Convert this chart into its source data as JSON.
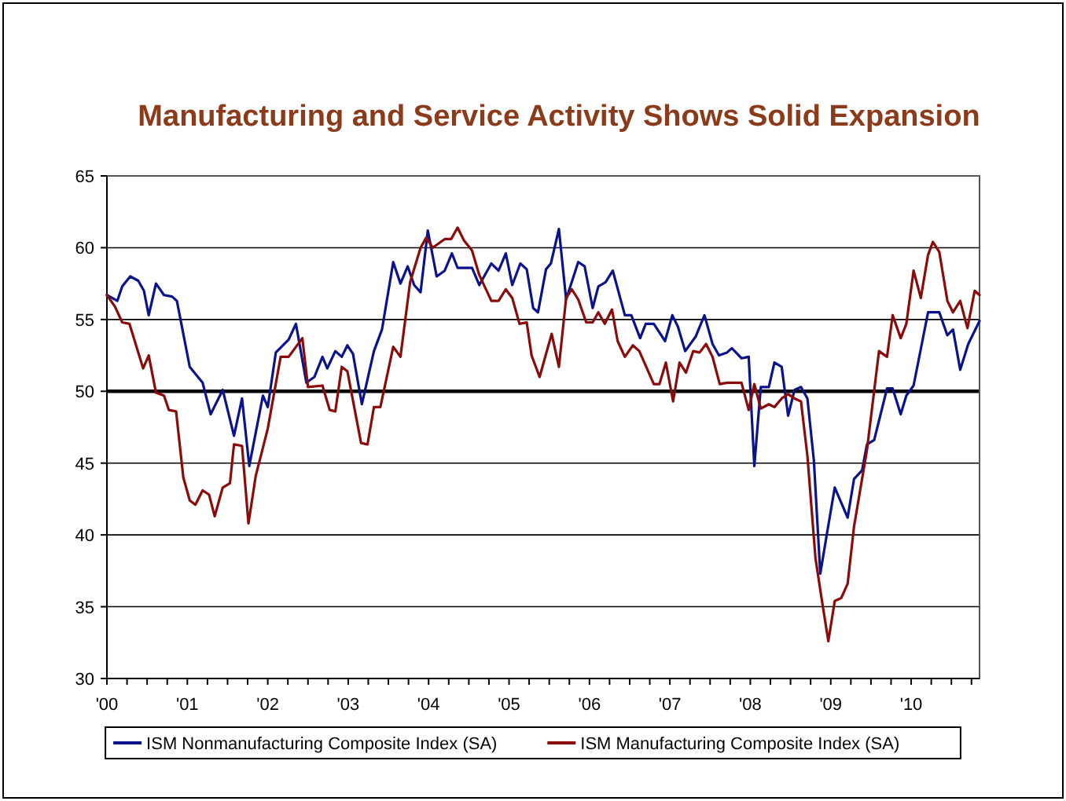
{
  "chart_data": {
    "type": "line",
    "title": "Manufacturing and Service Activity Shows Solid Expansion",
    "xlim": [
      2000,
      2010.85
    ],
    "ylim": [
      30,
      65
    ],
    "yticks": [
      30,
      35,
      40,
      45,
      50,
      55,
      60,
      65
    ],
    "xticks": [
      {
        "value": 2000,
        "label": "'00"
      },
      {
        "value": 2000.25,
        "label": null
      },
      {
        "value": 2000.5,
        "label": null
      },
      {
        "value": 2000.75,
        "label": null
      },
      {
        "value": 2001,
        "label": "'01"
      },
      {
        "value": 2001.25,
        "label": null
      },
      {
        "value": 2001.5,
        "label": null
      },
      {
        "value": 2001.75,
        "label": null
      },
      {
        "value": 2002,
        "label": "'02"
      },
      {
        "value": 2002.25,
        "label": null
      },
      {
        "value": 2002.5,
        "label": null
      },
      {
        "value": 2002.75,
        "label": null
      },
      {
        "value": 2003,
        "label": "'03"
      },
      {
        "value": 2003.25,
        "label": null
      },
      {
        "value": 2003.5,
        "label": null
      },
      {
        "value": 2003.75,
        "label": null
      },
      {
        "value": 2004,
        "label": "'04"
      },
      {
        "value": 2004.25,
        "label": null
      },
      {
        "value": 2004.5,
        "label": null
      },
      {
        "value": 2004.75,
        "label": null
      },
      {
        "value": 2005,
        "label": "'05"
      },
      {
        "value": 2005.25,
        "label": null
      },
      {
        "value": 2005.5,
        "label": null
      },
      {
        "value": 2005.75,
        "label": null
      },
      {
        "value": 2006,
        "label": "'06"
      },
      {
        "value": 2006.25,
        "label": null
      },
      {
        "value": 2006.5,
        "label": null
      },
      {
        "value": 2006.75,
        "label": null
      },
      {
        "value": 2007,
        "label": "'07"
      },
      {
        "value": 2007.25,
        "label": null
      },
      {
        "value": 2007.5,
        "label": null
      },
      {
        "value": 2007.75,
        "label": null
      },
      {
        "value": 2008,
        "label": "'08"
      },
      {
        "value": 2008.25,
        "label": null
      },
      {
        "value": 2008.5,
        "label": null
      },
      {
        "value": 2008.75,
        "label": null
      },
      {
        "value": 2009,
        "label": "'09"
      },
      {
        "value": 2009.25,
        "label": null
      },
      {
        "value": 2009.5,
        "label": null
      },
      {
        "value": 2009.75,
        "label": null
      },
      {
        "value": 2010,
        "label": "'10"
      },
      {
        "value": 2010.25,
        "label": null
      },
      {
        "value": 2010.5,
        "label": null
      },
      {
        "value": 2010.75,
        "label": null
      }
    ],
    "grid": "y",
    "legend": "bottom",
    "marker": "none",
    "line_style": "solid",
    "ref_lines": [
      {
        "axis": "y",
        "value": 50,
        "color": "#000000"
      }
    ],
    "series": [
      {
        "name": "ISM Nonmanufacturing Composite Index (SA)",
        "color": "#0a128c",
        "x": [
          2000.0,
          2000.13,
          2000.19,
          2000.29,
          2000.39,
          2000.46,
          2000.52,
          2000.61,
          2000.71,
          2000.81,
          2000.87,
          2001.03,
          2001.19,
          2001.29,
          2001.44,
          2001.58,
          2001.68,
          2001.77,
          2001.94,
          2002.0,
          2002.1,
          2002.26,
          2002.35,
          2002.48,
          2002.58,
          2002.68,
          2002.74,
          2002.84,
          2002.92,
          2002.99,
          2003.06,
          2003.17,
          2003.32,
          2003.42,
          2003.56,
          2003.65,
          2003.74,
          2003.82,
          2003.9,
          2003.99,
          2004.1,
          2004.2,
          2004.29,
          2004.36,
          2004.54,
          2004.63,
          2004.78,
          2004.87,
          2004.96,
          2005.04,
          2005.14,
          2005.22,
          2005.3,
          2005.36,
          2005.46,
          2005.52,
          2005.62,
          2005.71,
          2005.86,
          2005.94,
          2006.04,
          2006.11,
          2006.2,
          2006.29,
          2006.44,
          2006.52,
          2006.63,
          2006.7,
          2006.8,
          2006.94,
          2007.03,
          2007.1,
          2007.19,
          2007.32,
          2007.43,
          2007.53,
          2007.61,
          2007.71,
          2007.77,
          2007.89,
          2007.98,
          2008.05,
          2008.13,
          2008.23,
          2008.3,
          2008.39,
          2008.47,
          2008.55,
          2008.63,
          2008.71,
          2008.79,
          2008.87,
          2008.95,
          2009.05,
          2009.21,
          2009.29,
          2009.39,
          2009.45,
          2009.54,
          2009.7,
          2009.77,
          2009.87,
          2009.94,
          2010.03,
          2010.21,
          2010.35,
          2010.45,
          2010.52,
          2010.61,
          2010.71,
          2010.85
        ],
        "values": [
          56.7,
          56.3,
          57.3,
          58.0,
          57.7,
          57.0,
          55.3,
          57.5,
          56.7,
          56.6,
          56.3,
          51.7,
          50.6,
          48.4,
          50.1,
          46.9,
          49.5,
          44.8,
          49.7,
          48.9,
          52.7,
          53.6,
          54.7,
          50.6,
          51.0,
          52.4,
          51.6,
          52.8,
          52.4,
          53.2,
          52.6,
          49.1,
          52.8,
          54.3,
          59.0,
          57.5,
          58.7,
          57.4,
          56.9,
          61.2,
          58.0,
          58.4,
          59.6,
          58.6,
          58.6,
          57.4,
          58.9,
          58.4,
          59.6,
          57.4,
          58.9,
          58.5,
          55.8,
          55.5,
          58.5,
          58.9,
          61.3,
          56.4,
          59.0,
          58.7,
          55.8,
          57.3,
          57.6,
          58.4,
          55.3,
          55.3,
          53.7,
          54.7,
          54.7,
          53.5,
          55.3,
          54.5,
          52.8,
          53.8,
          55.3,
          53.3,
          52.5,
          52.7,
          53.0,
          52.3,
          52.4,
          44.8,
          50.3,
          50.3,
          52.0,
          51.7,
          48.3,
          50.1,
          50.3,
          49.5,
          45.2,
          37.3,
          40.0,
          43.3,
          41.2,
          43.9,
          44.5,
          46.3,
          46.6,
          50.2,
          50.2,
          48.4,
          49.7,
          50.4,
          55.5,
          55.5,
          53.9,
          54.3,
          51.5,
          53.3,
          54.9
        ]
      },
      {
        "name": "ISM Manufacturing Composite Index (SA)",
        "color": "#8b0a0a",
        "x": [
          2000.0,
          2000.1,
          2000.19,
          2000.28,
          2000.45,
          2000.52,
          2000.61,
          2000.71,
          2000.77,
          2000.86,
          2000.95,
          2001.03,
          2001.1,
          2001.19,
          2001.27,
          2001.34,
          2001.44,
          2001.53,
          2001.58,
          2001.68,
          2001.76,
          2001.85,
          2002.0,
          2002.16,
          2002.26,
          2002.43,
          2002.5,
          2002.68,
          2002.77,
          2002.84,
          2002.92,
          2002.99,
          2003.16,
          2003.24,
          2003.32,
          2003.4,
          2003.56,
          2003.65,
          2003.77,
          2003.9,
          2003.97,
          2004.05,
          2004.2,
          2004.28,
          2004.36,
          2004.44,
          2004.54,
          2004.63,
          2004.78,
          2004.87,
          2004.96,
          2005.04,
          2005.13,
          2005.22,
          2005.28,
          2005.38,
          2005.53,
          2005.62,
          2005.71,
          2005.78,
          2005.86,
          2005.96,
          2006.04,
          2006.11,
          2006.19,
          2006.28,
          2006.35,
          2006.44,
          2006.54,
          2006.62,
          2006.8,
          2006.87,
          2006.95,
          2007.04,
          2007.12,
          2007.2,
          2007.29,
          2007.37,
          2007.45,
          2007.53,
          2007.62,
          2007.71,
          2007.89,
          2007.98,
          2008.05,
          2008.13,
          2008.23,
          2008.3,
          2008.39,
          2008.47,
          2008.55,
          2008.63,
          2008.71,
          2008.81,
          2008.88,
          2008.97,
          2009.05,
          2009.13,
          2009.21,
          2009.29,
          2009.45,
          2009.6,
          2009.7,
          2009.77,
          2009.87,
          2009.94,
          2010.03,
          2010.12,
          2010.21,
          2010.27,
          2010.35,
          2010.45,
          2010.52,
          2010.61,
          2010.7,
          2010.79,
          2010.85
        ],
        "values": [
          56.7,
          55.9,
          54.8,
          54.7,
          51.6,
          52.5,
          49.9,
          49.7,
          48.7,
          48.6,
          44.0,
          42.4,
          42.1,
          43.1,
          42.8,
          41.3,
          43.3,
          43.6,
          46.3,
          46.2,
          40.8,
          44.1,
          47.4,
          52.4,
          52.4,
          53.7,
          50.3,
          50.4,
          48.7,
          48.6,
          51.7,
          51.4,
          46.4,
          46.3,
          48.9,
          48.9,
          53.1,
          52.4,
          57.6,
          60.0,
          60.7,
          60.0,
          60.6,
          60.6,
          61.4,
          60.5,
          59.8,
          58.1,
          56.3,
          56.3,
          57.1,
          56.5,
          54.7,
          54.8,
          52.5,
          51.0,
          54.0,
          51.7,
          56.5,
          57.1,
          56.4,
          54.8,
          54.8,
          55.5,
          54.7,
          55.7,
          53.5,
          52.4,
          53.2,
          52.8,
          50.5,
          50.5,
          52.0,
          49.3,
          52.0,
          51.3,
          52.8,
          52.7,
          53.3,
          52.4,
          50.5,
          50.6,
          50.6,
          48.7,
          50.5,
          48.8,
          49.1,
          48.9,
          49.5,
          49.8,
          49.5,
          49.3,
          45.5,
          38.4,
          35.8,
          32.6,
          35.4,
          35.6,
          36.6,
          40.6,
          45.9,
          52.8,
          52.4,
          55.3,
          53.7,
          54.7,
          58.4,
          56.5,
          59.5,
          60.4,
          59.7,
          56.3,
          55.5,
          56.3,
          54.4,
          57.0,
          56.7
        ]
      }
    ]
  }
}
